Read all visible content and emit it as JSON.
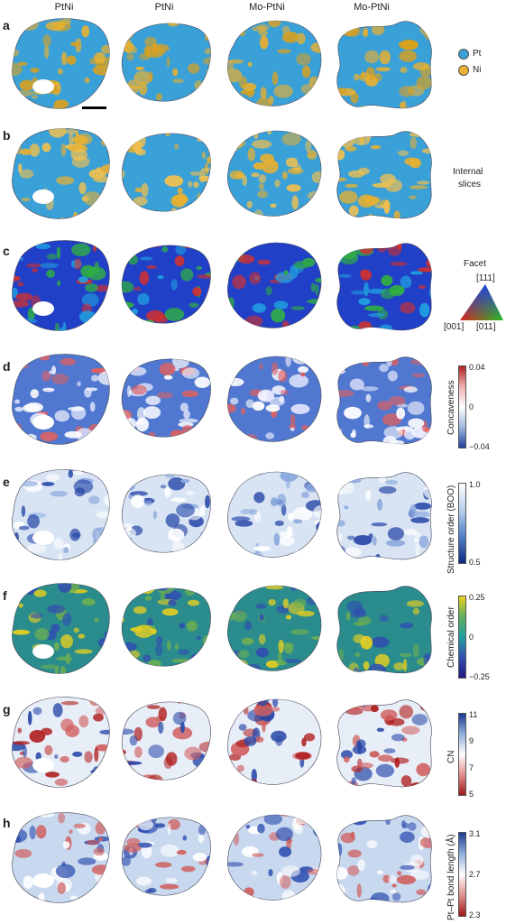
{
  "columns": [
    "PtNi",
    "PtNi",
    "Mo-PtNi",
    "Mo-PtNi"
  ],
  "rows": [
    {
      "letter": "a",
      "kind": "atoms"
    },
    {
      "letter": "b",
      "kind": "slices"
    },
    {
      "letter": "c",
      "kind": "facet"
    },
    {
      "letter": "d",
      "kind": "concave"
    },
    {
      "letter": "e",
      "kind": "boo"
    },
    {
      "letter": "f",
      "kind": "chem"
    },
    {
      "letter": "g",
      "kind": "cn"
    },
    {
      "letter": "h",
      "kind": "bond"
    }
  ],
  "legend_a": {
    "pt_label": "Pt",
    "ni_label": "Ni",
    "pt_color": "#3aa0d8",
    "ni_color": "#e8b030"
  },
  "legend_b": {
    "label_line1": "Internal",
    "label_line2": "slices"
  },
  "legend_c": {
    "title": "Facet",
    "top": "[111]",
    "left": "[001]",
    "right": "[011]"
  },
  "legend_d": {
    "label": "Concaveness",
    "max": "0.04",
    "mid": "0",
    "min": "−0.04"
  },
  "legend_e": {
    "label": "Structure order (BOO)",
    "max": "1.0",
    "min": "0.5"
  },
  "legend_f": {
    "label": "Chemical order",
    "max": "0.25",
    "mid": "0",
    "min": "−0.25"
  },
  "legend_g": {
    "label": "CN",
    "t1": "11",
    "t2": "9",
    "t3": "7",
    "t4": "5"
  },
  "legend_h": {
    "label": "Pt–Pt bond length (Å)",
    "max": "3.1",
    "mid": "2.7",
    "min": "2.3"
  }
}
